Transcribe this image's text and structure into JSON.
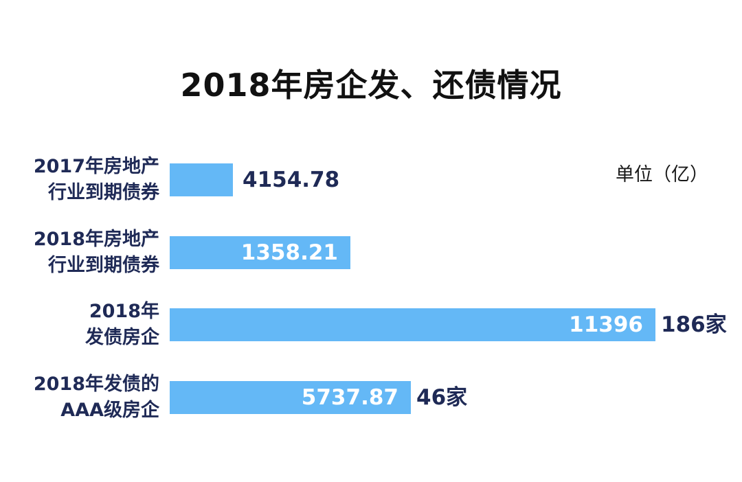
{
  "chart_data": {
    "type": "bar",
    "orientation": "horizontal",
    "title": "2018年房企发、还债情况",
    "unit_label": "单位（亿）",
    "categories": [
      [
        "2017年房地产",
        "行业到期债券"
      ],
      [
        "2018年房地产",
        "行业到期债券"
      ],
      [
        "2018年",
        "发债房企"
      ],
      [
        "2018年发债的",
        "AAA级房企"
      ]
    ],
    "values": [
      4154.78,
      1358.21,
      11396,
      5737.87
    ],
    "value_labels": [
      "4154.78",
      "1358.21",
      "11396",
      "5737.87"
    ],
    "extra_labels": [
      "",
      "",
      "186家",
      "46家"
    ],
    "bar_color": "#64b8f6"
  }
}
